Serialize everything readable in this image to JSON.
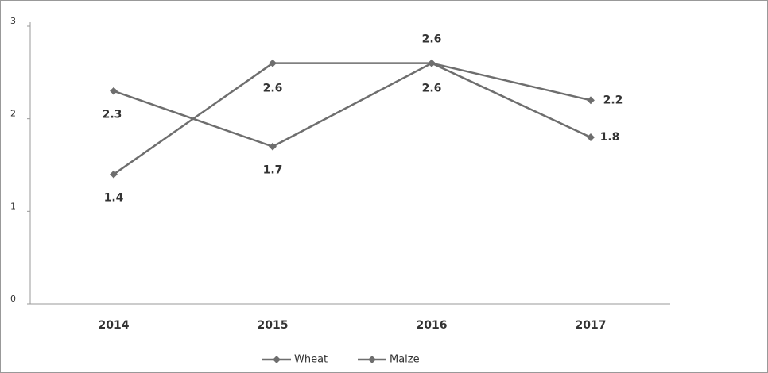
{
  "chart_data": {
    "type": "line",
    "categories": [
      "2014",
      "2015",
      "2016",
      "2017"
    ],
    "series": [
      {
        "name": "Wheat",
        "color": "#6e6e6e",
        "values": [
          2.3,
          1.7,
          2.6,
          2.2
        ]
      },
      {
        "name": "Maize",
        "color": "#6e6e6e",
        "values": [
          1.4,
          2.6,
          2.6,
          1.8
        ]
      }
    ],
    "ylim": [
      0,
      3
    ],
    "yticks": [
      0,
      1,
      2,
      3
    ],
    "grid": false
  }
}
